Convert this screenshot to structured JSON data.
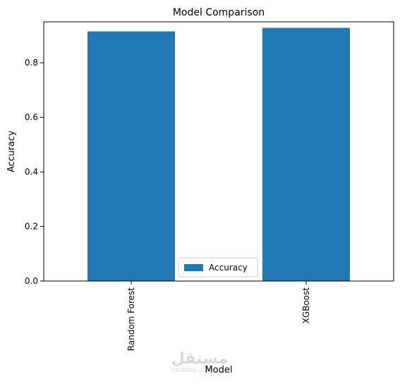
{
  "chart_data": {
    "type": "bar",
    "title": "Model Comparison",
    "xlabel": "Model",
    "ylabel": "Accuracy",
    "categories": [
      "Random Forest",
      "XGBoost"
    ],
    "series": [
      {
        "name": "Accuracy",
        "values": [
          0.915,
          0.928
        ],
        "color": "#1f77b4"
      }
    ],
    "ylim": [
      0,
      0.95
    ],
    "yticks": [
      0.0,
      0.2,
      0.4,
      0.6,
      0.8
    ],
    "ytick_labels": [
      "0.0",
      "0.2",
      "0.4",
      "0.6",
      "0.8"
    ],
    "xtick_rotation": "vertical",
    "grid": false,
    "legend": {
      "placement": "lower-center",
      "labels": [
        "Accuracy"
      ]
    }
  },
  "watermark": {
    "text": "مستقل",
    "subtext": "mostaql.com"
  }
}
